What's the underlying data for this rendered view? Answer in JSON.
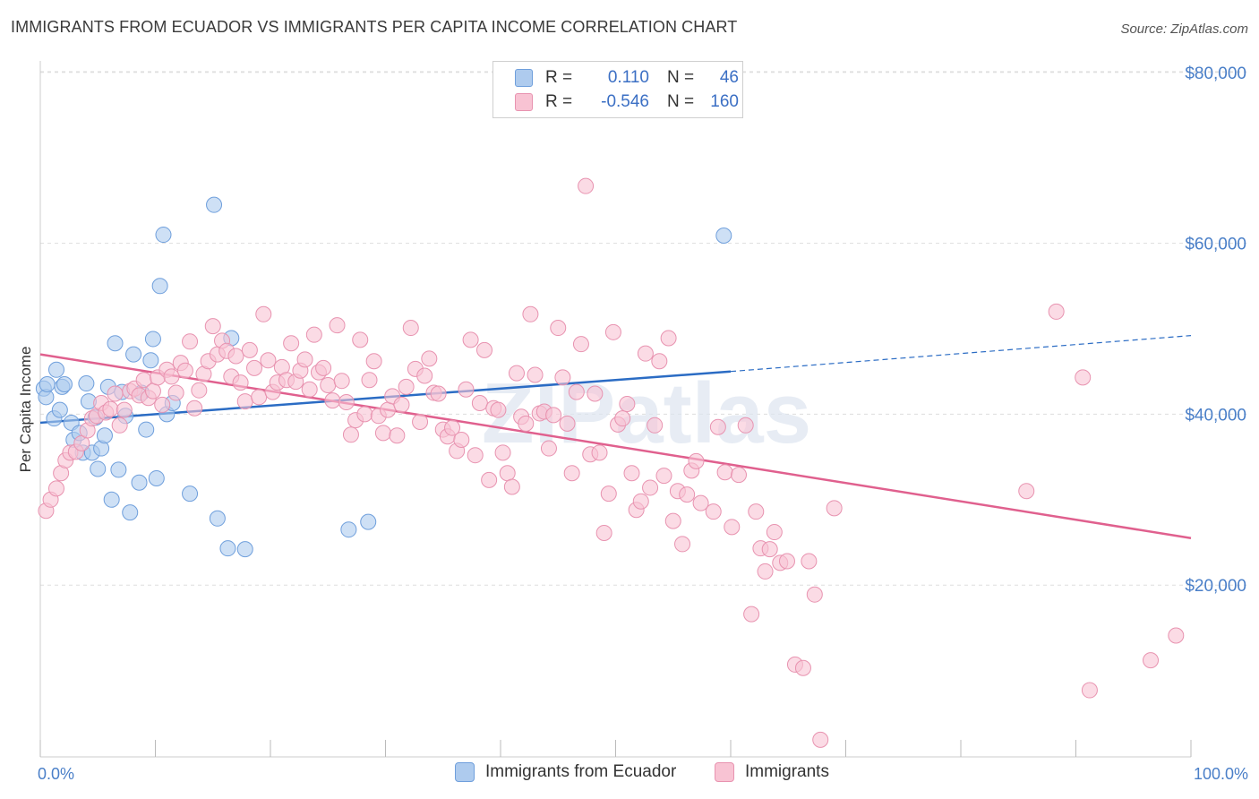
{
  "title": "IMMIGRANTS FROM ECUADOR VS IMMIGRANTS PER CAPITA INCOME CORRELATION CHART",
  "source": "Source: ZipAtlas.com",
  "watermark": "ZIPatlas",
  "legend": {
    "r_label": "R =",
    "n_label": "N =",
    "rows": [
      {
        "r": "0.110",
        "n": "46",
        "fill": "#aecbee",
        "stroke": "#6f9fdc"
      },
      {
        "r": "-0.546",
        "n": "160",
        "fill": "#f8c3d3",
        "stroke": "#e893b0"
      }
    ]
  },
  "bottom_legend": [
    {
      "label": "Immigrants from Ecuador",
      "fill": "#aecbee",
      "stroke": "#6f9fdc"
    },
    {
      "label": "Immigrants",
      "fill": "#f8c3d3",
      "stroke": "#e893b0"
    }
  ],
  "chart_data": {
    "type": "scatter",
    "title": "IMMIGRANTS FROM ECUADOR VS IMMIGRANTS PER CAPITA INCOME CORRELATION CHART",
    "xlabel": "",
    "ylabel": "Per Capita Income",
    "xlim": [
      0,
      100
    ],
    "ylim": [
      0,
      80000
    ],
    "x_tick_labels": [
      "0.0%",
      "100.0%"
    ],
    "y_ticks": [
      20000,
      40000,
      60000,
      80000
    ],
    "y_tick_labels": [
      "$20,000",
      "$40,000",
      "$60,000",
      "$80,000"
    ],
    "grid": "horizontal dashed",
    "legend_position": "top-center",
    "series": [
      {
        "name": "Immigrants from Ecuador",
        "color": "#6f9fdc",
        "fill": "#aecbee",
        "trend": {
          "x": [
            0,
            60
          ],
          "y": [
            39000,
            45000
          ],
          "dashed_to": [
            100,
            49200
          ],
          "color": "#2b6cc4"
        },
        "points": [
          [
            0.3,
            43000
          ],
          [
            0.5,
            42000
          ],
          [
            0.6,
            43500
          ],
          [
            1.2,
            39500
          ],
          [
            1.4,
            45200
          ],
          [
            1.7,
            40500
          ],
          [
            1.9,
            43200
          ],
          [
            2.1,
            43500
          ],
          [
            2.7,
            39000
          ],
          [
            2.9,
            37000
          ],
          [
            3.4,
            37800
          ],
          [
            3.7,
            35500
          ],
          [
            4.0,
            43600
          ],
          [
            4.2,
            41500
          ],
          [
            4.5,
            35500
          ],
          [
            4.8,
            39600
          ],
          [
            5.0,
            33600
          ],
          [
            5.3,
            36000
          ],
          [
            5.6,
            37500
          ],
          [
            5.9,
            43200
          ],
          [
            6.2,
            30000
          ],
          [
            6.5,
            48300
          ],
          [
            6.8,
            33500
          ],
          [
            7.1,
            42600
          ],
          [
            7.4,
            39800
          ],
          [
            7.8,
            28500
          ],
          [
            8.1,
            47000
          ],
          [
            8.6,
            32000
          ],
          [
            8.8,
            42500
          ],
          [
            9.2,
            38200
          ],
          [
            9.6,
            46300
          ],
          [
            9.8,
            48800
          ],
          [
            10.1,
            32500
          ],
          [
            10.4,
            55000
          ],
          [
            10.7,
            61000
          ],
          [
            11.0,
            40000
          ],
          [
            11.5,
            41300
          ],
          [
            13.0,
            30700
          ],
          [
            15.1,
            64500
          ],
          [
            15.4,
            27800
          ],
          [
            16.3,
            24300
          ],
          [
            16.6,
            48900
          ],
          [
            17.8,
            24200
          ],
          [
            26.8,
            26500
          ],
          [
            28.5,
            27400
          ],
          [
            59.4,
            60900
          ]
        ]
      },
      {
        "name": "Immigrants",
        "color": "#e893b0",
        "fill": "#f8c3d3",
        "trend": {
          "x": [
            0,
            100
          ],
          "y": [
            47000,
            25500
          ],
          "color": "#e0608e"
        },
        "points": [
          [
            0.5,
            28700
          ],
          [
            0.9,
            30000
          ],
          [
            1.4,
            31300
          ],
          [
            1.8,
            33100
          ],
          [
            2.2,
            34600
          ],
          [
            2.6,
            35500
          ],
          [
            3.1,
            35600
          ],
          [
            3.6,
            36600
          ],
          [
            4.1,
            38100
          ],
          [
            4.5,
            39500
          ],
          [
            4.9,
            39800
          ],
          [
            5.3,
            41300
          ],
          [
            5.7,
            40200
          ],
          [
            6.1,
            40600
          ],
          [
            6.5,
            42400
          ],
          [
            6.9,
            38700
          ],
          [
            7.3,
            40500
          ],
          [
            7.8,
            42700
          ],
          [
            8.2,
            43000
          ],
          [
            8.6,
            42200
          ],
          [
            9.0,
            44000
          ],
          [
            9.4,
            41900
          ],
          [
            9.8,
            42700
          ],
          [
            10.2,
            44300
          ],
          [
            10.6,
            41100
          ],
          [
            11.0,
            45200
          ],
          [
            11.4,
            44400
          ],
          [
            11.8,
            42500
          ],
          [
            12.2,
            46000
          ],
          [
            12.6,
            45100
          ],
          [
            13.0,
            48500
          ],
          [
            13.4,
            40700
          ],
          [
            13.8,
            42800
          ],
          [
            14.2,
            44700
          ],
          [
            14.6,
            46200
          ],
          [
            15.0,
            50300
          ],
          [
            15.4,
            47000
          ],
          [
            15.8,
            48600
          ],
          [
            16.2,
            47400
          ],
          [
            16.6,
            44400
          ],
          [
            17.0,
            46800
          ],
          [
            17.4,
            43700
          ],
          [
            17.8,
            41500
          ],
          [
            18.2,
            47500
          ],
          [
            18.6,
            45400
          ],
          [
            19.0,
            42000
          ],
          [
            19.4,
            51700
          ],
          [
            19.8,
            46300
          ],
          [
            20.2,
            42600
          ],
          [
            20.6,
            43700
          ],
          [
            21.0,
            45500
          ],
          [
            21.4,
            44000
          ],
          [
            21.8,
            48300
          ],
          [
            22.2,
            43800
          ],
          [
            22.6,
            45100
          ],
          [
            23.0,
            46400
          ],
          [
            23.4,
            42900
          ],
          [
            23.8,
            49300
          ],
          [
            24.2,
            44900
          ],
          [
            24.6,
            45400
          ],
          [
            25.0,
            43400
          ],
          [
            25.4,
            41600
          ],
          [
            25.8,
            50400
          ],
          [
            26.2,
            43900
          ],
          [
            26.6,
            41400
          ],
          [
            27.0,
            37600
          ],
          [
            27.4,
            39300
          ],
          [
            27.8,
            48700
          ],
          [
            28.2,
            40000
          ],
          [
            28.6,
            44000
          ],
          [
            29.0,
            46200
          ],
          [
            29.4,
            39800
          ],
          [
            29.8,
            37800
          ],
          [
            30.2,
            40500
          ],
          [
            30.6,
            42100
          ],
          [
            31.0,
            37500
          ],
          [
            31.4,
            41100
          ],
          [
            31.8,
            43200
          ],
          [
            32.2,
            50100
          ],
          [
            32.6,
            45300
          ],
          [
            33.0,
            39100
          ],
          [
            33.4,
            44500
          ],
          [
            33.8,
            46500
          ],
          [
            34.2,
            42500
          ],
          [
            34.6,
            42400
          ],
          [
            35.0,
            38200
          ],
          [
            35.4,
            37400
          ],
          [
            35.8,
            38400
          ],
          [
            36.2,
            35700
          ],
          [
            36.6,
            37000
          ],
          [
            37.0,
            42900
          ],
          [
            37.4,
            48700
          ],
          [
            37.8,
            35200
          ],
          [
            38.2,
            41300
          ],
          [
            38.6,
            47500
          ],
          [
            39.0,
            32300
          ],
          [
            39.4,
            40700
          ],
          [
            39.8,
            40500
          ],
          [
            40.2,
            35500
          ],
          [
            40.6,
            33100
          ],
          [
            41.0,
            31500
          ],
          [
            41.4,
            44800
          ],
          [
            41.8,
            39700
          ],
          [
            42.2,
            38900
          ],
          [
            42.6,
            51700
          ],
          [
            43.0,
            44600
          ],
          [
            43.4,
            40100
          ],
          [
            43.8,
            40300
          ],
          [
            44.2,
            36000
          ],
          [
            44.6,
            39900
          ],
          [
            45.0,
            50100
          ],
          [
            45.4,
            44300
          ],
          [
            45.8,
            38900
          ],
          [
            46.2,
            33100
          ],
          [
            46.6,
            42600
          ],
          [
            47.0,
            48200
          ],
          [
            47.4,
            66700
          ],
          [
            47.8,
            35300
          ],
          [
            48.2,
            42400
          ],
          [
            48.6,
            35500
          ],
          [
            49.0,
            26100
          ],
          [
            49.4,
            30700
          ],
          [
            49.8,
            49600
          ],
          [
            50.2,
            38800
          ],
          [
            50.6,
            39500
          ],
          [
            51.0,
            41200
          ],
          [
            51.4,
            33100
          ],
          [
            51.8,
            28800
          ],
          [
            52.2,
            29800
          ],
          [
            52.6,
            47100
          ],
          [
            53.0,
            31400
          ],
          [
            53.4,
            38700
          ],
          [
            53.8,
            46200
          ],
          [
            54.2,
            32800
          ],
          [
            54.6,
            48900
          ],
          [
            55.0,
            27500
          ],
          [
            55.4,
            31000
          ],
          [
            55.8,
            24800
          ],
          [
            56.2,
            30600
          ],
          [
            56.6,
            33400
          ],
          [
            57.0,
            34500
          ],
          [
            57.4,
            29600
          ],
          [
            58.5,
            28600
          ],
          [
            58.9,
            38500
          ],
          [
            59.5,
            33200
          ],
          [
            60.1,
            26800
          ],
          [
            60.7,
            32900
          ],
          [
            61.3,
            38700
          ],
          [
            61.8,
            16600
          ],
          [
            62.2,
            28600
          ],
          [
            62.6,
            24300
          ],
          [
            63.0,
            21600
          ],
          [
            63.4,
            24200
          ],
          [
            63.8,
            26200
          ],
          [
            64.3,
            22600
          ],
          [
            64.9,
            22800
          ],
          [
            65.6,
            10700
          ],
          [
            66.3,
            10300
          ],
          [
            66.8,
            22800
          ],
          [
            67.3,
            18900
          ],
          [
            67.8,
            1900
          ],
          [
            85.7,
            31000
          ],
          [
            88.3,
            52000
          ],
          [
            90.6,
            44300
          ],
          [
            91.2,
            7700
          ],
          [
            96.5,
            11200
          ],
          [
            98.7,
            14100
          ],
          [
            69.0,
            29000
          ]
        ]
      }
    ]
  }
}
